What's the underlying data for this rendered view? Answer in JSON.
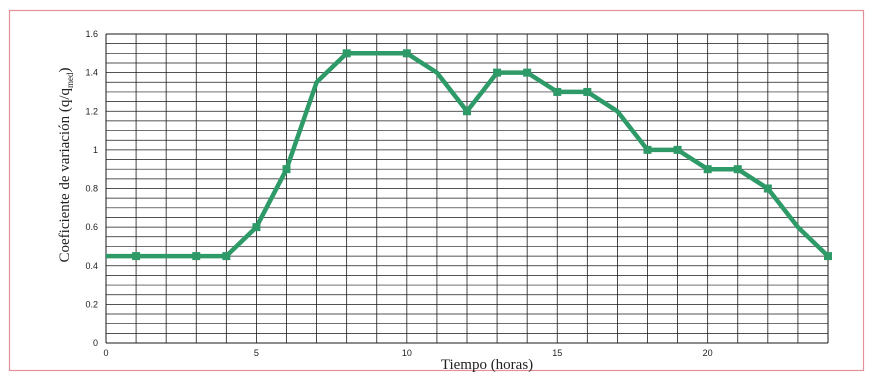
{
  "colors": {
    "frame_border": "#e2909a",
    "line": "#2e9a68",
    "grid": "#1a1a1a",
    "text": "#222222"
  },
  "chart_data": {
    "type": "line",
    "title": "",
    "xlabel": "Tiempo (horas)",
    "ylabel": "Coeficiente de variación (q/q",
    "ylabel_subscript": "med",
    "ylabel_suffix": ")",
    "xlim": [
      0,
      24
    ],
    "ylim": [
      0,
      1.6
    ],
    "x_ticks": [
      0,
      5,
      10,
      15,
      20
    ],
    "y_ticks": [
      "0",
      "0.2",
      "0.4",
      "0.6",
      "0.8",
      "1",
      "1.2",
      "1.4",
      "1.6"
    ],
    "y_tick_values": [
      0,
      0.2,
      0.4,
      0.6,
      0.8,
      1,
      1.2,
      1.4,
      1.6
    ],
    "grid": true,
    "legend": "none",
    "series": [
      {
        "x": [
          0,
          1,
          3,
          4,
          5,
          6,
          7,
          8,
          9,
          10,
          11,
          12,
          13,
          14,
          15,
          16,
          17,
          18,
          19,
          20,
          21,
          22,
          23,
          24
        ],
        "y": [
          0.45,
          0.45,
          0.45,
          0.45,
          0.6,
          0.9,
          1.35,
          1.5,
          1.5,
          1.5,
          1.4,
          1.2,
          1.4,
          1.4,
          1.3,
          1.3,
          1.2,
          1.0,
          1.0,
          0.9,
          0.9,
          0.8,
          0.6,
          0.45
        ],
        "markers": [
          1,
          3,
          4,
          5,
          6,
          8,
          10,
          12,
          13,
          14,
          15,
          16,
          18,
          19,
          20,
          21,
          22,
          24
        ]
      }
    ]
  }
}
